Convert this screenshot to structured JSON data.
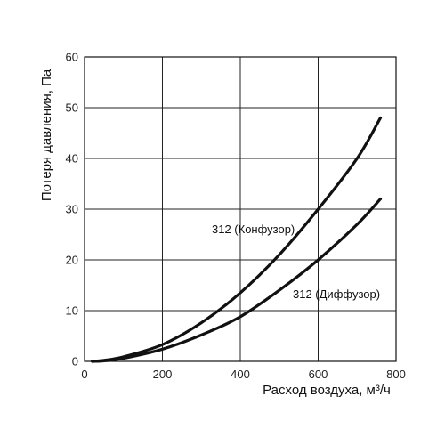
{
  "chart_data": {
    "type": "line",
    "xlabel": "Расход воздуха, м³/ч",
    "ylabel": "Потеря давления, Па",
    "xlim": [
      0,
      800
    ],
    "ylim": [
      0,
      60
    ],
    "xticks": [
      0,
      200,
      400,
      600,
      800
    ],
    "yticks": [
      0,
      10,
      20,
      30,
      40,
      50,
      60
    ],
    "grid": true,
    "series": [
      {
        "name": "312 (Конфузор)",
        "color": "#111111",
        "x": [
          20,
          50,
          100,
          200,
          300,
          400,
          500,
          600,
          700,
          760
        ],
        "y": [
          0.0,
          0.2,
          0.9,
          3.3,
          7.6,
          13.5,
          21.0,
          30.0,
          40.0,
          48.0
        ]
      },
      {
        "name": "312 (Диффузор)",
        "color": "#111111",
        "x": [
          20,
          50,
          100,
          200,
          300,
          400,
          500,
          600,
          700,
          760
        ],
        "y": [
          0.0,
          0.1,
          0.6,
          2.4,
          5.2,
          8.8,
          14.0,
          20.0,
          27.0,
          32.0
        ]
      }
    ]
  }
}
